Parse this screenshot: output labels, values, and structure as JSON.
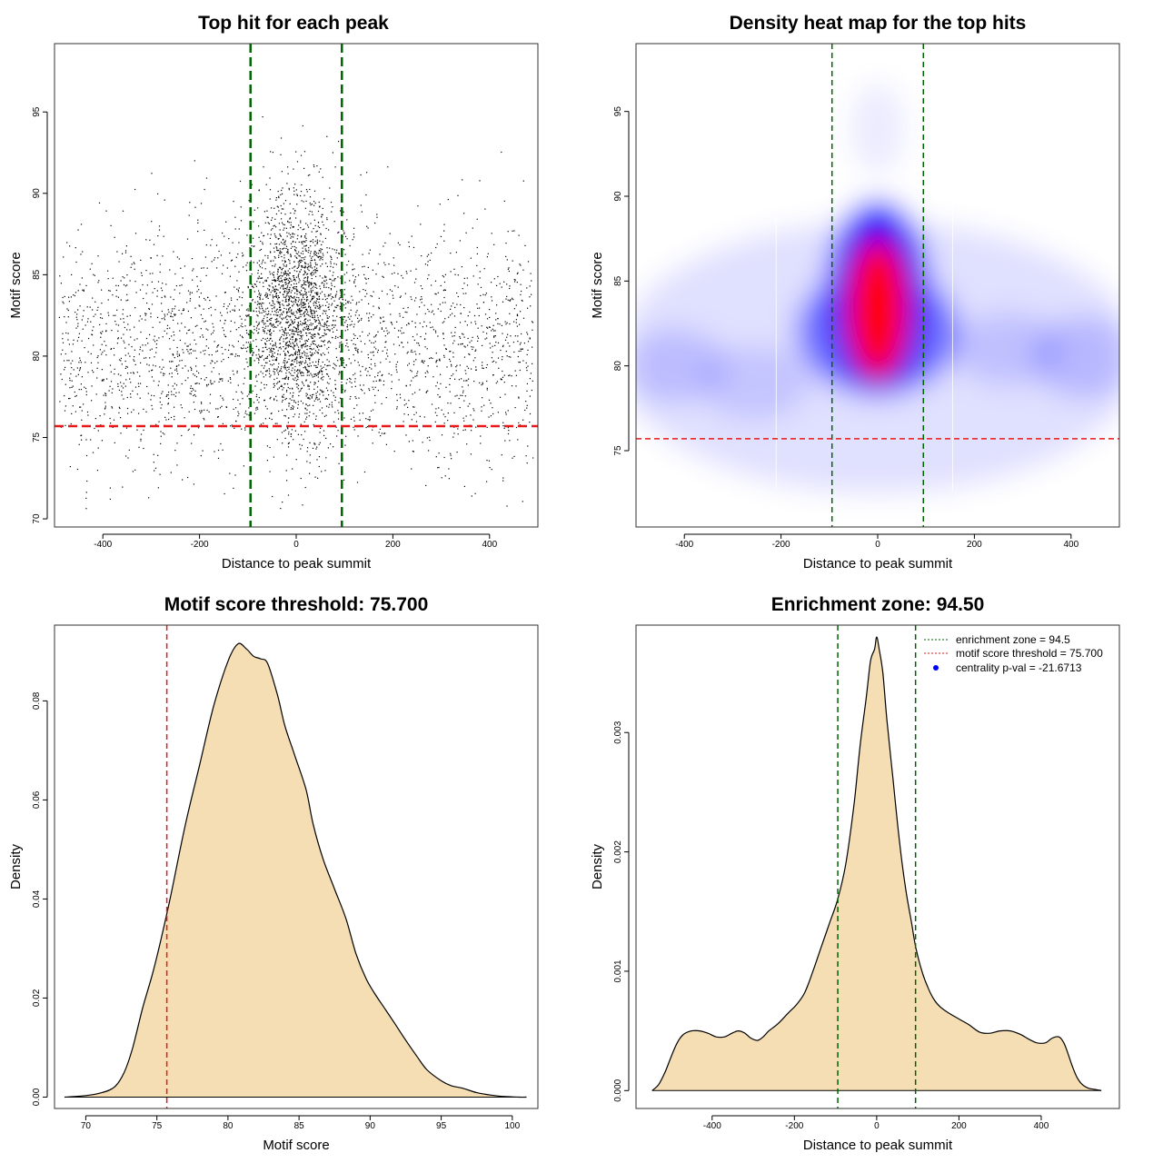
{
  "chart_data": [
    {
      "type": "scatter",
      "title": "Top hit for each peak",
      "xlabel": "Distance to peak summit",
      "ylabel": "Motif score",
      "xlim": [
        -500,
        500
      ],
      "ylim": [
        69.5,
        99.2
      ],
      "xticks": [
        "-400",
        "-200",
        "0",
        "200",
        "400"
      ],
      "xtick_values": [
        -400,
        -200,
        0,
        200,
        400
      ],
      "yticks": [
        "70",
        "75",
        "80",
        "85",
        "90",
        "95"
      ],
      "ytick_values": [
        70,
        75,
        80,
        85,
        90,
        95
      ],
      "enrichment_zone": 94.5,
      "score_threshold": 75.7,
      "point_count": 4300,
      "colors": {
        "points": "#000000",
        "zone": "#006400",
        "threshold": "#e8191a"
      }
    },
    {
      "type": "heatmap",
      "title": "Density heat map for the top hits",
      "xlabel": "Distance to peak summit",
      "ylabel": "Motif score",
      "xlim": [
        -500,
        500
      ],
      "ylim": [
        70.5,
        99
      ],
      "xticks": [
        "-400",
        "-200",
        "0",
        "200",
        "400"
      ],
      "xtick_values": [
        -400,
        -200,
        0,
        200,
        400
      ],
      "yticks": [
        "75",
        "80",
        "85",
        "90",
        "95"
      ],
      "ytick_values": [
        75,
        80,
        85,
        90,
        95
      ],
      "peak_center": {
        "x": 0,
        "y": 83
      },
      "enrichment_zone": 94.5,
      "score_threshold": 75.7,
      "colors": {
        "low": "#ffffff",
        "mid": "#0000ff",
        "high": "#ff0000",
        "zone": "#006400",
        "threshold": "#e8191a"
      }
    },
    {
      "type": "area",
      "title": "Motif score threshold: 75.700",
      "xlabel": "Motif score",
      "ylabel": "Density",
      "xlim": [
        67.8,
        101.8
      ],
      "ylim": [
        -0.0023,
        0.0953
      ],
      "xticks": [
        "70",
        "75",
        "80",
        "85",
        "90",
        "95",
        "100"
      ],
      "xtick_values": [
        70,
        75,
        80,
        85,
        90,
        95,
        100
      ],
      "yticks": [
        "0.00",
        "0.02",
        "0.04",
        "0.06",
        "0.08"
      ],
      "ytick_values": [
        0.0,
        0.02,
        0.04,
        0.06,
        0.08
      ],
      "x": [
        68.5,
        70,
        71,
        72,
        72.7,
        73.3,
        74,
        74.7,
        75.3,
        76,
        77,
        78,
        79,
        80,
        80.7,
        81.3,
        81.8,
        82.3,
        82.8,
        83.5,
        84,
        84.7,
        85.5,
        86,
        86.7,
        87.5,
        88.3,
        89,
        89.7,
        90.3,
        91,
        91.7,
        92.5,
        93.3,
        94,
        95,
        95.7,
        96.5,
        97.5,
        98.5,
        99.5,
        100.5,
        101
      ],
      "values": [
        0.0,
        0.0003,
        0.0008,
        0.002,
        0.005,
        0.01,
        0.018,
        0.025,
        0.032,
        0.041,
        0.055,
        0.067,
        0.079,
        0.088,
        0.0915,
        0.0905,
        0.089,
        0.0885,
        0.0875,
        0.081,
        0.075,
        0.069,
        0.062,
        0.055,
        0.048,
        0.042,
        0.036,
        0.029,
        0.024,
        0.021,
        0.018,
        0.015,
        0.0115,
        0.0082,
        0.0055,
        0.0033,
        0.0023,
        0.0018,
        0.0009,
        0.0004,
        0.0001,
        0.0,
        0.0
      ],
      "threshold": 75.7,
      "colors": {
        "fill": "#f5deb3",
        "line": "#000000",
        "threshold": "#e8191a"
      }
    },
    {
      "type": "area",
      "title": "Enrichment zone: 94.50",
      "xlabel": "Distance to peak summit",
      "ylabel": "Density",
      "xlim": [
        -585,
        590
      ],
      "ylim": [
        -0.00015,
        0.0039
      ],
      "xticks": [
        "-400",
        "-200",
        "0",
        "200",
        "400"
      ],
      "xtick_values": [
        -400,
        -200,
        0,
        200,
        400
      ],
      "yticks": [
        "0.000",
        "0.001",
        "0.002",
        "0.003"
      ],
      "ytick_values": [
        0.0,
        0.001,
        0.002,
        0.003
      ],
      "x": [
        -546,
        -530,
        -515,
        -500,
        -485,
        -470,
        -450,
        -430,
        -410,
        -390,
        -370,
        -352,
        -336,
        -320,
        -306,
        -290,
        -276,
        -262,
        -240,
        -215,
        -195,
        -175,
        -155,
        -135,
        -115,
        -95,
        -75,
        -55,
        -40,
        -25,
        -15,
        -5,
        0,
        6,
        15,
        25,
        40,
        55,
        70,
        85,
        95,
        110,
        125,
        140,
        155,
        175,
        200,
        225,
        250,
        275,
        300,
        325,
        350,
        370,
        390,
        410,
        427,
        443,
        455,
        466,
        476,
        487,
        500,
        515,
        530,
        546
      ],
      "values": [
        0.0,
        5e-05,
        0.00015,
        0.00028,
        0.0004,
        0.00047,
        0.0005,
        0.0005,
        0.00048,
        0.00045,
        0.00045,
        0.00048,
        0.0005,
        0.00048,
        0.00044,
        0.00042,
        0.00045,
        0.0005,
        0.00056,
        0.00065,
        0.00072,
        0.00082,
        0.001,
        0.0012,
        0.0014,
        0.0016,
        0.0019,
        0.0024,
        0.0029,
        0.0033,
        0.0036,
        0.0037,
        0.0038,
        0.0037,
        0.0035,
        0.0031,
        0.0026,
        0.0021,
        0.0017,
        0.0014,
        0.0012,
        0.001,
        0.00086,
        0.00076,
        0.0007,
        0.00065,
        0.0006,
        0.00055,
        0.00049,
        0.00048,
        0.0005,
        0.0005,
        0.00047,
        0.00043,
        0.0004,
        0.0004,
        0.00044,
        0.00045,
        0.0004,
        0.0003,
        0.0002,
        0.00011,
        5e-05,
        2e-05,
        1e-05,
        0.0
      ],
      "enrichment_zone": 94.5,
      "legend": [
        {
          "label": "enrichment zone = 94.5",
          "color": "#006400",
          "style": "dotted"
        },
        {
          "label": "motif score threshold = 75.700",
          "color": "#e8191a",
          "style": "dotted"
        },
        {
          "label": "centrality p-val = -21.6713",
          "color": "#0000ff",
          "style": "point"
        }
      ],
      "legend_position": "top-right",
      "colors": {
        "fill": "#f5deb3",
        "line": "#000000",
        "zone": "#006400"
      }
    }
  ]
}
